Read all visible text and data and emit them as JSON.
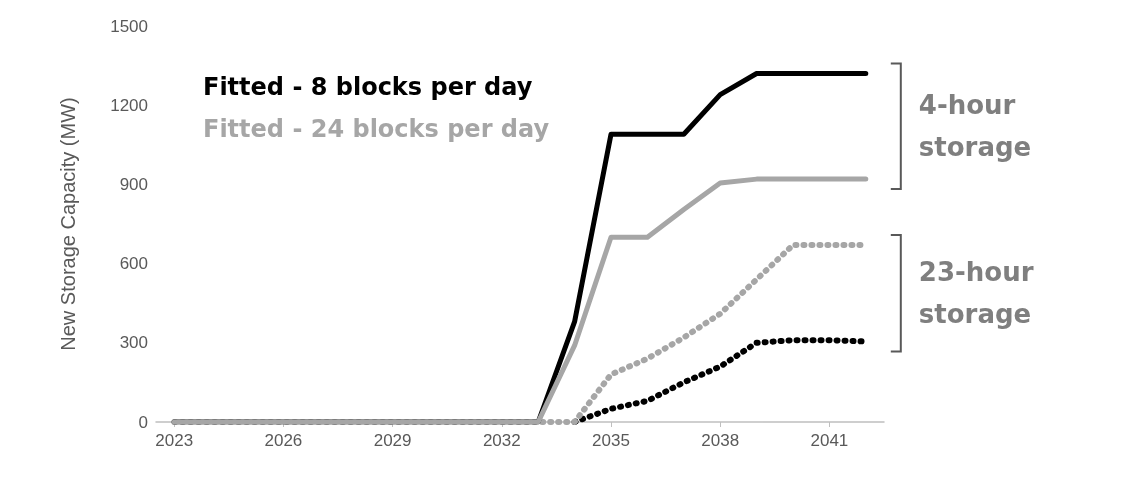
{
  "chart_data": {
    "type": "line",
    "ylabel": "New Storage Capacity (MW)",
    "x": [
      2023,
      2024,
      2025,
      2026,
      2027,
      2028,
      2029,
      2030,
      2031,
      2032,
      2033,
      2034,
      2035,
      2036,
      2037,
      2038,
      2039,
      2040,
      2041,
      2042
    ],
    "series": [
      {
        "name": "Fitted - 8 blocks per day",
        "color": "#000000",
        "line_style": "solid",
        "values": [
          0,
          0,
          0,
          0,
          0,
          0,
          0,
          0,
          0,
          0,
          0,
          380,
          1090,
          1090,
          1090,
          1240,
          1320,
          1320,
          1320,
          1320
        ]
      },
      {
        "name": "Fitted - 24 blocks per day",
        "color": "#a6a6a6",
        "line_style": "solid",
        "values": [
          0,
          0,
          0,
          0,
          0,
          0,
          0,
          0,
          0,
          0,
          0,
          290,
          700,
          700,
          805,
          905,
          920,
          920,
          920,
          920
        ]
      },
      {
        "color": "#000000",
        "line_style": "dotted",
        "values": [
          null,
          null,
          null,
          null,
          null,
          null,
          null,
          null,
          null,
          null,
          null,
          0,
          50,
          80,
          150,
          210,
          300,
          310,
          310,
          305
        ]
      },
      {
        "color": "#a6a6a6",
        "line_style": "dotted",
        "values": [
          0,
          0,
          0,
          0,
          0,
          0,
          0,
          0,
          0,
          0,
          0,
          0,
          180,
          240,
          320,
          410,
          540,
          670,
          670,
          670
        ]
      }
    ],
    "annotations": [
      "4-hour storage",
      "23-hour storage"
    ],
    "xlim": [
      2022.5,
      2042.5
    ],
    "xticks": [
      2023,
      2026,
      2029,
      2032,
      2035,
      2038,
      2041
    ],
    "ylim": [
      0,
      1500
    ],
    "yticks": [
      0,
      300,
      600,
      900,
      1200,
      1500
    ],
    "grid": false,
    "legend": "top left",
    "marker": "none"
  }
}
